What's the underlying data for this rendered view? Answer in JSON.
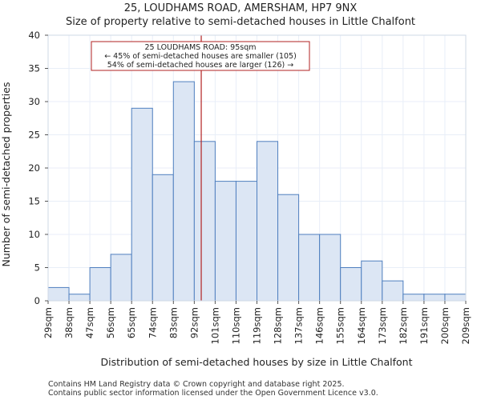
{
  "chart_data": {
    "type": "bar",
    "title_lines": [
      "25, LOUDHAMS ROAD, AMERSHAM, HP7 9NX",
      "Size of property relative to semi-detached houses in Little Chalfont"
    ],
    "xlabel": "Distribution of semi-detached houses by size in Little Chalfont",
    "ylabel": "Number of semi-detached properties",
    "ylim": [
      0,
      40
    ],
    "yticks": [
      0,
      5,
      10,
      15,
      20,
      25,
      30,
      35,
      40
    ],
    "bin_edges": [
      29,
      38,
      47,
      56,
      65,
      74,
      83,
      92,
      101,
      110,
      119,
      128,
      137,
      146,
      155,
      164,
      173,
      182,
      191,
      200,
      209
    ],
    "tick_labels": [
      "29sqm",
      "38sqm",
      "47sqm",
      "56sqm",
      "65sqm",
      "74sqm",
      "83sqm",
      "92sqm",
      "101sqm",
      "110sqm",
      "119sqm",
      "128sqm",
      "137sqm",
      "146sqm",
      "155sqm",
      "164sqm",
      "173sqm",
      "182sqm",
      "191sqm",
      "200sqm",
      "209sqm"
    ],
    "values": [
      2,
      1,
      5,
      7,
      29,
      19,
      33,
      24,
      18,
      18,
      24,
      16,
      10,
      10,
      5,
      6,
      3,
      1,
      1,
      1
    ],
    "property_marker": {
      "value": 95,
      "lines": [
        "25 LOUDHAMS ROAD: 95sqm",
        "← 45% of semi-detached houses are smaller (105)",
        "54% of semi-detached houses are larger (126) →"
      ]
    },
    "colors": {
      "bar_fill": "#dce6f4",
      "bar_edge": "#4f7fbf",
      "marker": "#b22222",
      "grid": "#e8eef8"
    },
    "grid": true
  },
  "footer": {
    "line1": "Contains HM Land Registry data © Crown copyright and database right 2025.",
    "line2": "Contains public sector information licensed under the Open Government Licence v3.0."
  }
}
